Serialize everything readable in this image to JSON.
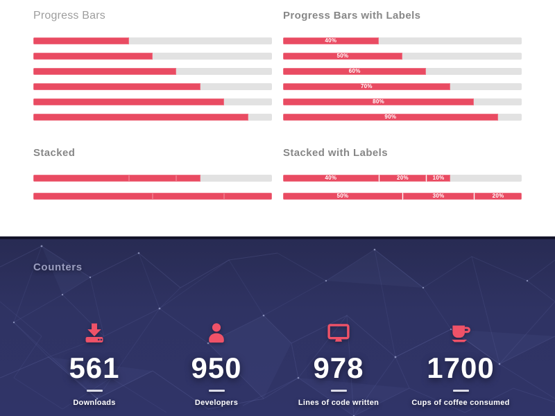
{
  "colors": {
    "accent": "#e94b62",
    "track": "#e2e2e2",
    "dark_background": "#2f3363",
    "dark_border_top": "#14142a",
    "heading_gray": "#878787",
    "counter_text": "#ffffff"
  },
  "sections": {
    "progress": {
      "title": "Progress Bars",
      "bars": [
        40,
        50,
        60,
        70,
        80,
        90
      ]
    },
    "progress_labeled": {
      "title": "Progress Bars with Labels",
      "bars": [
        {
          "value": 40,
          "label": "40%"
        },
        {
          "value": 50,
          "label": "50%"
        },
        {
          "value": 60,
          "label": "60%"
        },
        {
          "value": 70,
          "label": "70%"
        },
        {
          "value": 80,
          "label": "80%"
        },
        {
          "value": 90,
          "label": "90%"
        }
      ]
    },
    "stacked": {
      "title": "Stacked",
      "bars": [
        {
          "segments": [
            40,
            20,
            10
          ]
        },
        {
          "segments": [
            50,
            30,
            20
          ]
        }
      ]
    },
    "stacked_labeled": {
      "title": "Stacked with Labels",
      "bars": [
        {
          "segments": [
            {
              "value": 40,
              "label": "40%"
            },
            {
              "value": 20,
              "label": "20%"
            },
            {
              "value": 10,
              "label": "10%"
            }
          ]
        },
        {
          "segments": [
            {
              "value": 50,
              "label": "50%"
            },
            {
              "value": 30,
              "label": "30%"
            },
            {
              "value": 20,
              "label": "20%"
            }
          ]
        }
      ]
    },
    "counters": {
      "title": "Counters",
      "items": [
        {
          "icon": "download-icon",
          "value": "561",
          "label": "Downloads"
        },
        {
          "icon": "user-icon",
          "value": "950",
          "label": "Developers"
        },
        {
          "icon": "monitor-icon",
          "value": "978",
          "label": "Lines of code written"
        },
        {
          "icon": "coffee-icon",
          "value": "1700",
          "label": "Cups of coffee consumed"
        }
      ]
    }
  }
}
